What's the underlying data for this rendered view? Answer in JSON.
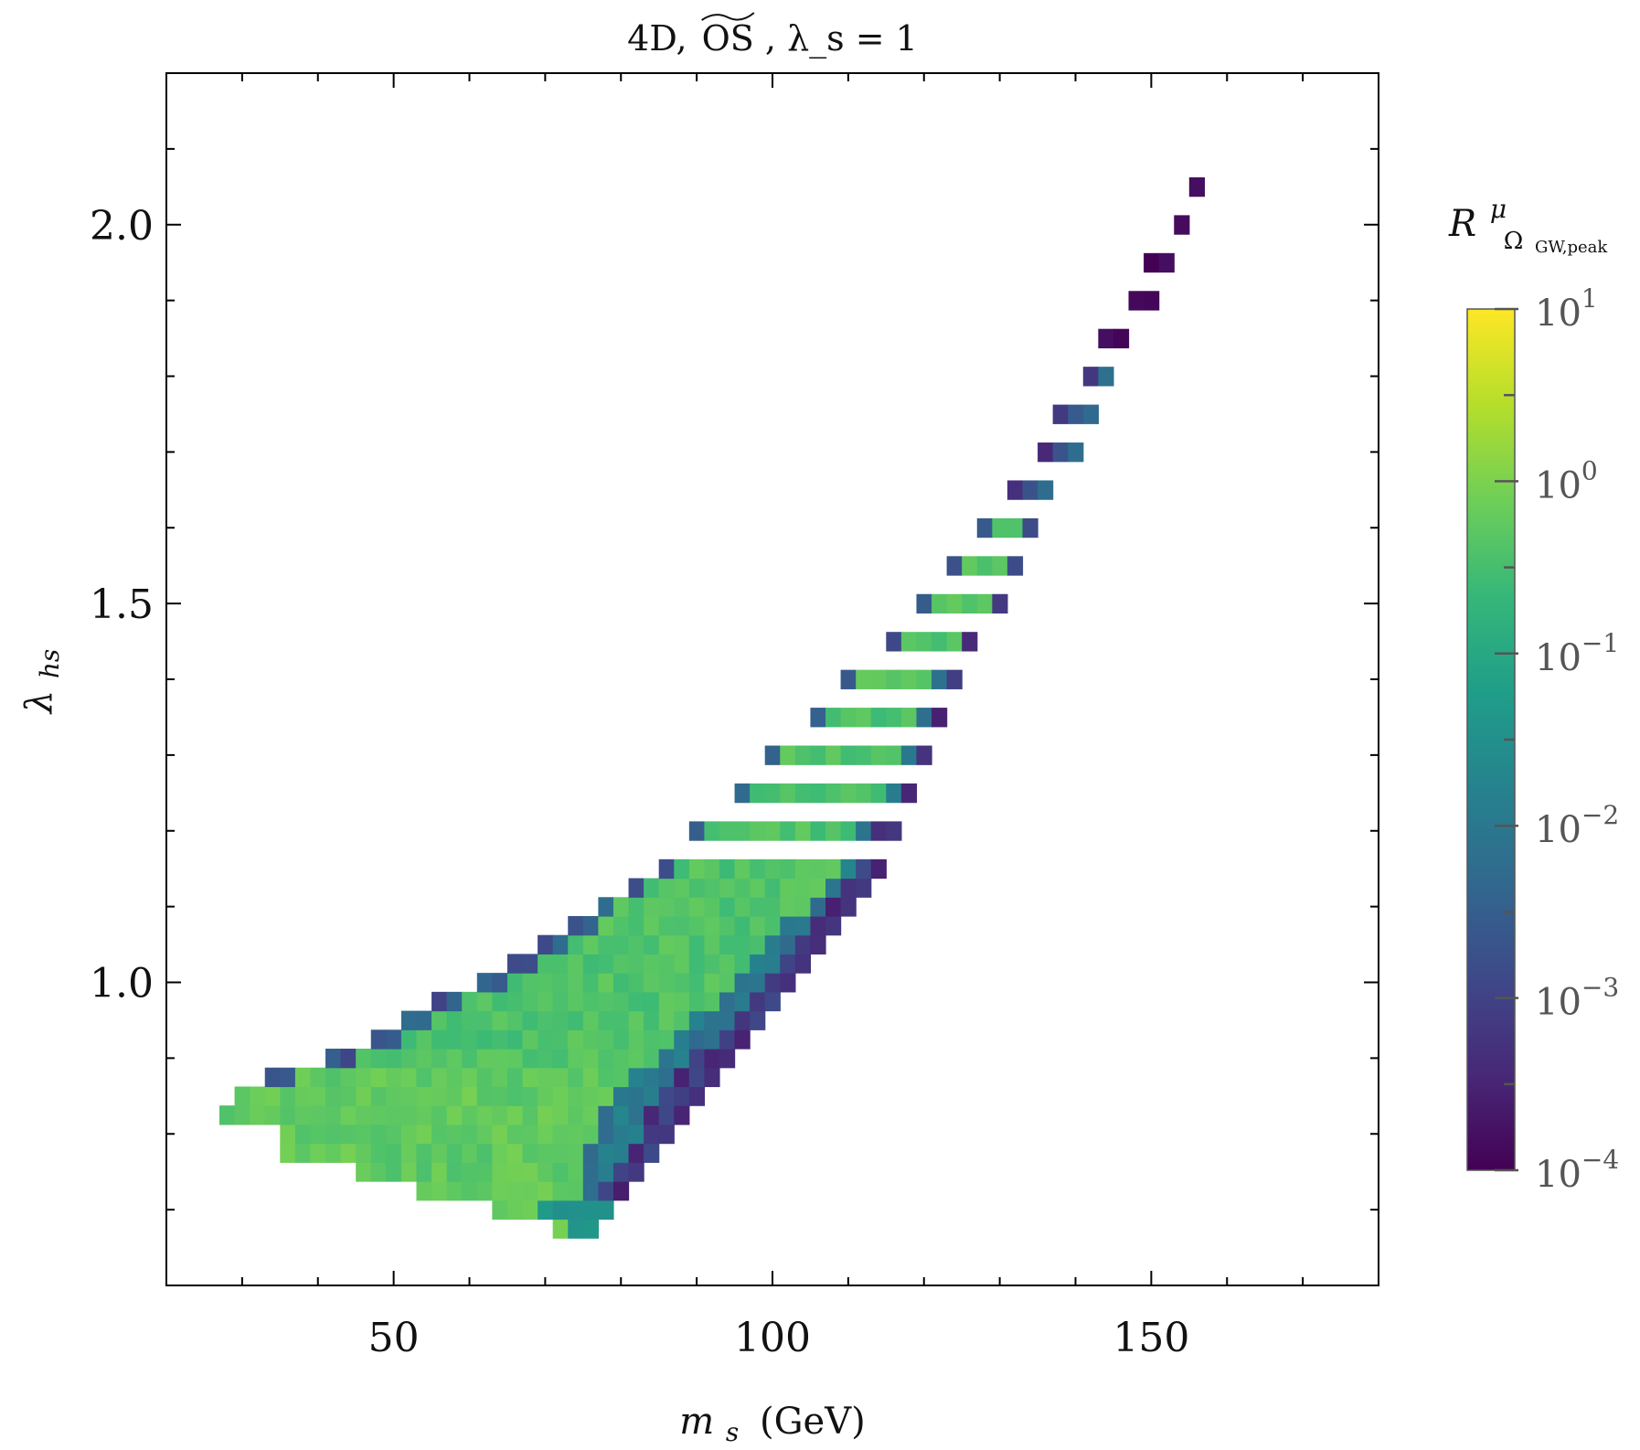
{
  "chart_data": {
    "type": "heatmap",
    "title_parts": {
      "prefix": "4D,",
      "scheme": "OS",
      "suffix": ", λ_s = 1"
    },
    "xlabel_parts": {
      "var": "m",
      "sub": "s",
      "unit": "(GeV)"
    },
    "ylabel_parts": {
      "var": "λ",
      "sub": "hs"
    },
    "xlim": [
      20,
      180
    ],
    "ylim": [
      0.6,
      2.2
    ],
    "x_ticks": [
      {
        "value": 50,
        "label": "50"
      },
      {
        "value": 100,
        "label": "100"
      },
      {
        "value": 150,
        "label": "150"
      }
    ],
    "y_ticks": [
      {
        "value": 1.0,
        "label": "1.0"
      },
      {
        "value": 1.5,
        "label": "1.5"
      },
      {
        "value": 2.0,
        "label": "2.0"
      }
    ],
    "x_minor_step": 10,
    "y_minor_step": 0.1,
    "colorbar": {
      "title_parts": {
        "var": "R",
        "sup": "μ",
        "sub": "Ω",
        "subsub": "GW,peak"
      },
      "scale": "log",
      "range_exp": [
        -4,
        1
      ],
      "ticks": [
        {
          "base": "10",
          "exp": "1",
          "value_exp": 1
        },
        {
          "base": "10",
          "exp": "0",
          "value_exp": 0
        },
        {
          "base": "10",
          "exp": "−1",
          "value_exp": -1
        },
        {
          "base": "10",
          "exp": "−2",
          "value_exp": -2
        },
        {
          "base": "10",
          "exp": "−3",
          "value_exp": -3
        },
        {
          "base": "10",
          "exp": "−4",
          "value_exp": -4
        }
      ],
      "colormap": "viridis",
      "colormap_stops": [
        "#440154",
        "#482878",
        "#3e4989",
        "#31688e",
        "#26828e",
        "#1f9e89",
        "#35b779",
        "#6ece58",
        "#b5de2b",
        "#fde725"
      ]
    },
    "bin_width_x": 2,
    "bin_height_y": 0.05,
    "region_rows": [
      {
        "y": 0.675,
        "xmin": 72,
        "xmax": 76
      },
      {
        "y": 0.7,
        "xmin": 64,
        "xmax": 78
      },
      {
        "y": 0.725,
        "xmin": 54,
        "xmax": 80
      },
      {
        "y": 0.75,
        "xmin": 46,
        "xmax": 82
      },
      {
        "y": 0.775,
        "xmin": 36,
        "xmax": 84
      },
      {
        "y": 0.8,
        "xmin": 36,
        "xmax": 86
      },
      {
        "y": 0.825,
        "xmin": 28,
        "xmax": 88
      },
      {
        "y": 0.85,
        "xmin": 30,
        "xmax": 90
      },
      {
        "y": 0.875,
        "xmin": 34,
        "xmax": 92
      },
      {
        "y": 0.9,
        "xmin": 42,
        "xmax": 94
      },
      {
        "y": 0.925,
        "xmin": 48,
        "xmax": 96
      },
      {
        "y": 0.95,
        "xmin": 52,
        "xmax": 98
      },
      {
        "y": 0.975,
        "xmin": 56,
        "xmax": 100
      },
      {
        "y": 1.0,
        "xmin": 62,
        "xmax": 102
      },
      {
        "y": 1.025,
        "xmin": 66,
        "xmax": 104
      },
      {
        "y": 1.05,
        "xmin": 70,
        "xmax": 106
      },
      {
        "y": 1.075,
        "xmin": 74,
        "xmax": 108
      },
      {
        "y": 1.1,
        "xmin": 78,
        "xmax": 110
      },
      {
        "y": 1.125,
        "xmin": 82,
        "xmax": 112
      },
      {
        "y": 1.15,
        "xmin": 86,
        "xmax": 114
      },
      {
        "y": 1.2,
        "xmin": 90,
        "xmax": 116
      },
      {
        "y": 1.25,
        "xmin": 96,
        "xmax": 118
      },
      {
        "y": 1.3,
        "xmin": 100,
        "xmax": 120
      },
      {
        "y": 1.35,
        "xmin": 106,
        "xmax": 122
      },
      {
        "y": 1.4,
        "xmin": 110,
        "xmax": 124
      },
      {
        "y": 1.45,
        "xmin": 116,
        "xmax": 126
      },
      {
        "y": 1.5,
        "xmin": 120,
        "xmax": 130
      },
      {
        "y": 1.55,
        "xmin": 124,
        "xmax": 132
      },
      {
        "y": 1.6,
        "xmin": 128,
        "xmax": 134
      },
      {
        "y": 1.65,
        "xmin": 132,
        "xmax": 136
      },
      {
        "y": 1.7,
        "xmin": 136,
        "xmax": 140
      },
      {
        "y": 1.75,
        "xmin": 138,
        "xmax": 142
      },
      {
        "y": 1.8,
        "xmin": 142,
        "xmax": 144
      },
      {
        "y": 1.85,
        "xmin": 144,
        "xmax": 146
      },
      {
        "y": 1.9,
        "xmin": 148,
        "xmax": 150
      },
      {
        "y": 1.95,
        "xmin": 150,
        "xmax": 152
      },
      {
        "y": 2.0,
        "xmin": 154,
        "xmax": 154
      },
      {
        "y": 2.05,
        "xmin": 156,
        "xmax": 156
      }
    ],
    "value_trend": "upper-left edge ≈ 1e-4, interior ≈ 1e-1 to 1, lowest-mass region near 1; upper branch above λ_hs ≈ 1.6 mostly 1e-4 to 1e-3"
  }
}
